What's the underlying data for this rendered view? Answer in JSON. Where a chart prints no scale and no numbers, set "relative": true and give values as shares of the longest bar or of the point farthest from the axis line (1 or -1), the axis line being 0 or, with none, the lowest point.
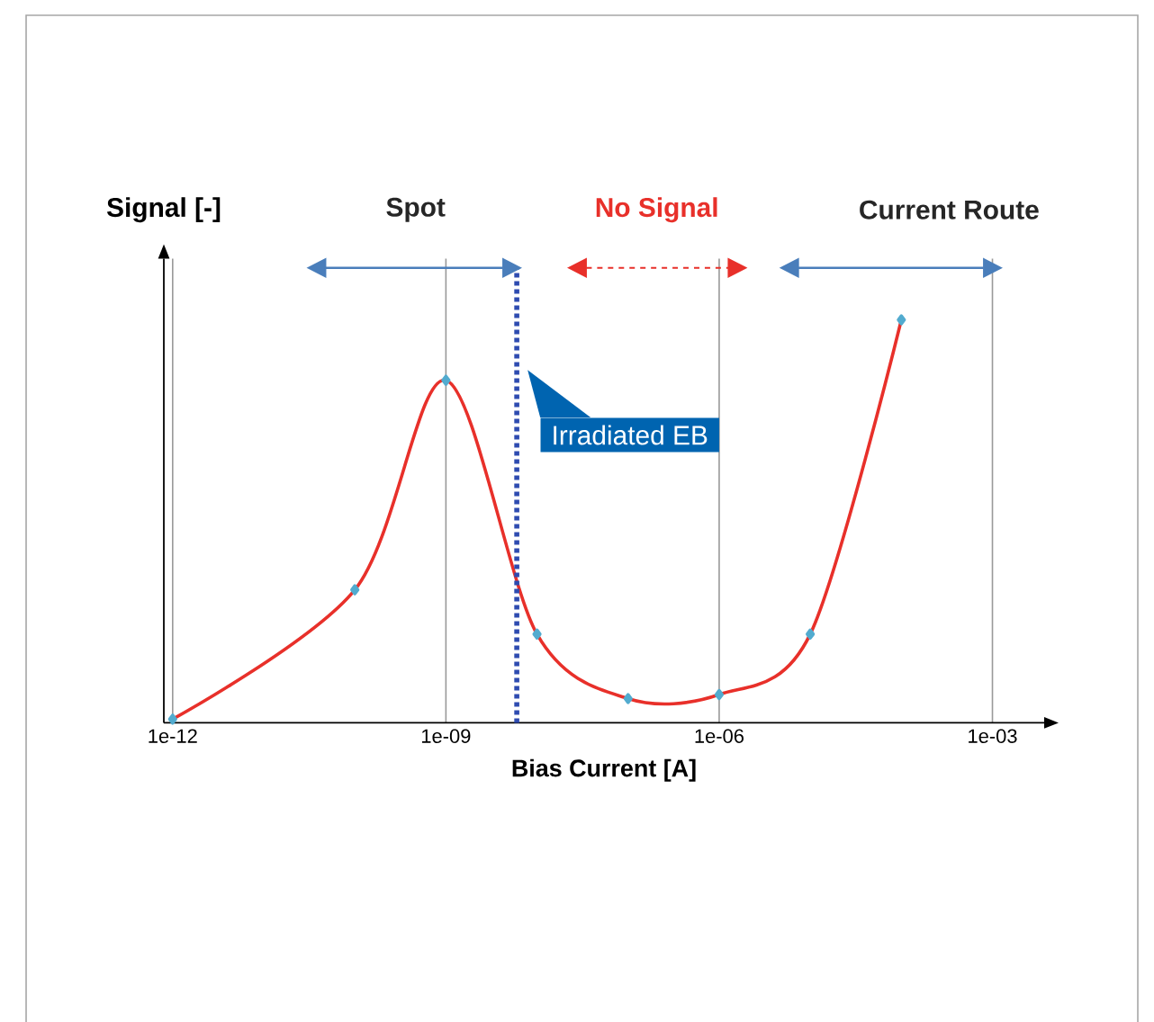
{
  "chart_data": {
    "type": "line",
    "relative": true,
    "xlabel": "Bias Current [A]",
    "ylabel": "Signal [-]",
    "x": [
      1e-12,
      1e-10,
      1e-09,
      1e-08,
      1e-07,
      1e-06,
      1e-05,
      0.0001
    ],
    "series": [
      {
        "color": "#e8302a",
        "values": [
          0.009,
          0.33,
          0.85,
          0.22,
          0.06,
          0.07,
          0.22,
          1
        ]
      }
    ],
    "xlim": [
      8e-13,
      0.0037
    ],
    "xticks": [
      {
        "value": 1e-12,
        "label": "1e-12"
      },
      {
        "value": 1e-09,
        "label": "1e-09"
      },
      {
        "value": 1e-06,
        "label": "1e-06"
      },
      {
        "value": 0.001,
        "label": "1e-03"
      }
    ],
    "log": "x",
    "grid": "x",
    "marker": "diamond",
    "line_style": "solid",
    "ref_lines": [
      {
        "axis": "x",
        "value": 6e-09,
        "label": "Irradiated EB",
        "color": "#2e4bb0",
        "line_style": "dotted"
      }
    ],
    "annotations": [
      "Spot",
      "No Signal",
      "Current Route"
    ]
  }
}
